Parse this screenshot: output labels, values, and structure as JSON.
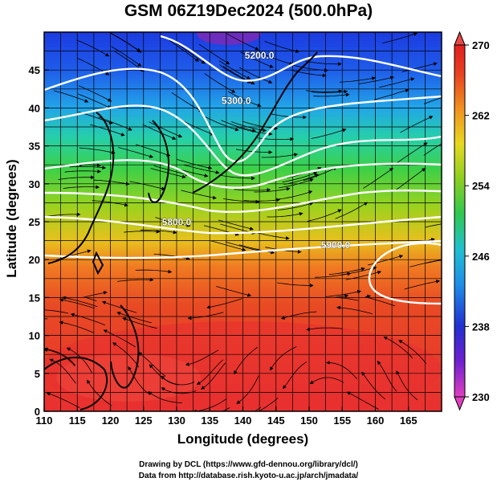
{
  "title": "GSM 06Z19Dec2024 (500.0hPa)",
  "xlabel": "Longitude (degrees)",
  "ylabel": "Latitude (degrees)",
  "credit_line1": "Drawing by DCL (https://www.gfd-dennou.org/library/dcl/)",
  "credit_line2": "Data from http://database.rish.kyoto-u.ac.jp/arch/jmadata/",
  "map": {
    "lon_range": [
      110,
      170
    ],
    "lat_range": [
      0,
      50
    ],
    "lon_ticks": [
      110,
      115,
      120,
      125,
      130,
      135,
      140,
      145,
      150,
      155,
      160,
      165
    ],
    "lat_ticks": [
      0,
      5,
      10,
      15,
      20,
      25,
      30,
      35,
      40,
      45
    ],
    "contour_labels": [
      {
        "text": "5200.0",
        "lon": 142.5,
        "lat": 46.5
      },
      {
        "text": "5300.0",
        "lon": 139,
        "lat": 40.5
      },
      {
        "text": "5800.0",
        "lon": 130,
        "lat": 24.5
      },
      {
        "text": "5900.0",
        "lon": 154,
        "lat": 21.5
      }
    ]
  },
  "colorbar": {
    "ticks": [
      "230",
      "238",
      "246",
      "254",
      "262",
      "270"
    ],
    "range": [
      230,
      270
    ],
    "colors": [
      "#e040c0",
      "#2030d0",
      "#1e8ee8",
      "#20c0d0",
      "#30c850",
      "#8ccf20",
      "#e8d820",
      "#f09020",
      "#e84020",
      "#e02020"
    ]
  }
}
